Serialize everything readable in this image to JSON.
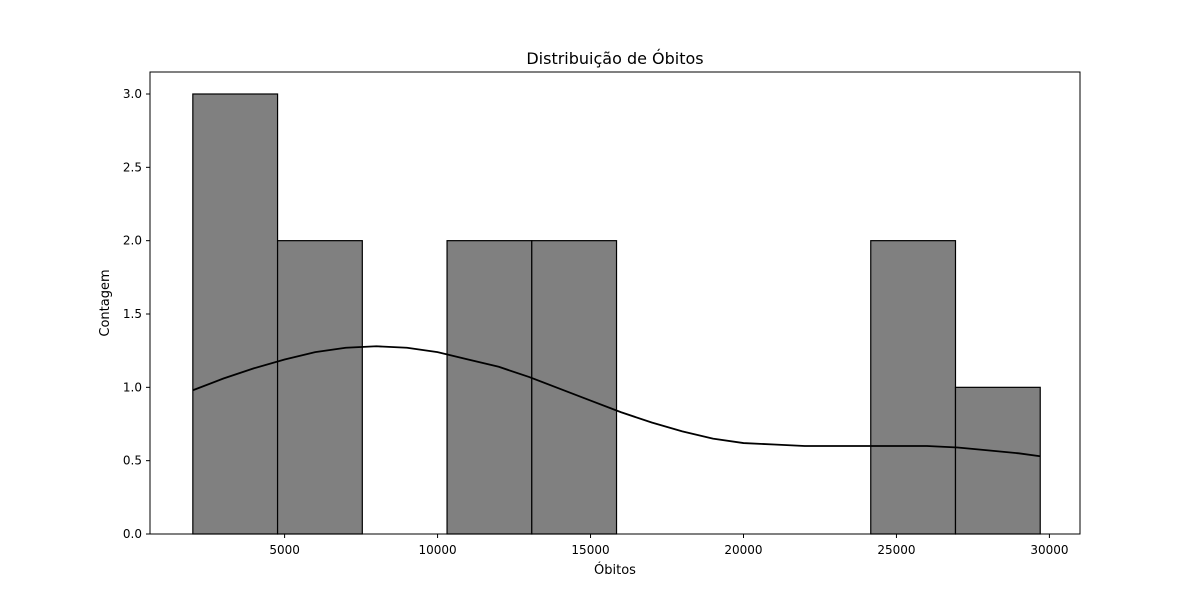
{
  "chart_data": {
    "type": "bar",
    "subtype": "histogram-with-kde",
    "title": "Distribuição de Óbitos",
    "xlabel": "Óbitos",
    "ylabel": "Contagem",
    "xlim": [
      600,
      31000
    ],
    "ylim": [
      0,
      3.15
    ],
    "xticks": [
      5000,
      10000,
      15000,
      20000,
      25000,
      30000
    ],
    "yticks": [
      0.0,
      0.5,
      1.0,
      1.5,
      2.0,
      2.5,
      3.0
    ],
    "bins": [
      {
        "start": 2000,
        "end": 4770,
        "count": 3
      },
      {
        "start": 4770,
        "end": 7540,
        "count": 2
      },
      {
        "start": 7540,
        "end": 10310,
        "count": 0
      },
      {
        "start": 10310,
        "end": 13080,
        "count": 2
      },
      {
        "start": 13080,
        "end": 15850,
        "count": 2
      },
      {
        "start": 15850,
        "end": 18620,
        "count": 0
      },
      {
        "start": 18620,
        "end": 21390,
        "count": 0
      },
      {
        "start": 21390,
        "end": 24160,
        "count": 0
      },
      {
        "start": 24160,
        "end": 26930,
        "count": 2
      },
      {
        "start": 26930,
        "end": 29700,
        "count": 1
      }
    ],
    "kde": {
      "x": [
        2000,
        3000,
        4000,
        5000,
        6000,
        7000,
        8000,
        9000,
        10000,
        11000,
        12000,
        13000,
        14000,
        15000,
        16000,
        17000,
        18000,
        19000,
        20000,
        21000,
        22000,
        23000,
        24000,
        25000,
        26000,
        27000,
        28000,
        29000,
        29700
      ],
      "y": [
        0.98,
        1.06,
        1.13,
        1.19,
        1.24,
        1.27,
        1.28,
        1.27,
        1.24,
        1.19,
        1.14,
        1.07,
        0.99,
        0.91,
        0.83,
        0.76,
        0.7,
        0.65,
        0.62,
        0.61,
        0.6,
        0.6,
        0.6,
        0.6,
        0.6,
        0.59,
        0.57,
        0.55,
        0.53
      ]
    },
    "colors": {
      "bar_fill": "#808080",
      "bar_edge": "#000000",
      "kde_line": "#000000"
    },
    "grid": false,
    "legend": "none"
  }
}
